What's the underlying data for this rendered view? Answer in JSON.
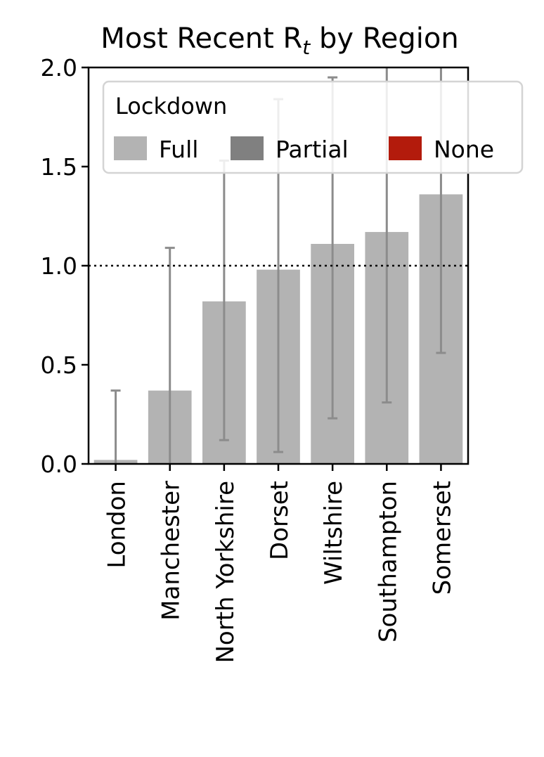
{
  "chart_data": {
    "type": "bar",
    "title": "Most Recent R",
    "title_subscript": "t",
    "title_suffix": " by Region",
    "xlabel": "",
    "ylabel": "",
    "ylim": [
      0,
      2.0
    ],
    "yticks": [
      "0.0",
      "0.5",
      "1.0",
      "1.5",
      "2.0"
    ],
    "categories": [
      "London",
      "Manchester",
      "North Yorkshire",
      "Dorset",
      "Wiltshire",
      "Southampton",
      "Somerset"
    ],
    "values": [
      0.02,
      0.37,
      0.82,
      0.98,
      1.11,
      1.17,
      1.36
    ],
    "error_low": [
      0.0,
      0.0,
      0.12,
      0.06,
      0.23,
      0.31,
      0.56
    ],
    "error_high": [
      0.37,
      1.09,
      1.53,
      1.84,
      1.95,
      2.0,
      2.0
    ],
    "lockdown": [
      "Full",
      "Full",
      "Full",
      "Full",
      "Full",
      "Full",
      "Full"
    ],
    "reference_line": 1.0,
    "grid": false,
    "legend": {
      "title": "Lockdown",
      "placement": "top-right",
      "entries": [
        {
          "label": "Full",
          "color": "#b3b3b3"
        },
        {
          "label": "Partial",
          "color": "#808080"
        },
        {
          "label": "None",
          "color": "#b31b0c"
        }
      ]
    },
    "colors": {
      "Full": "#b3b3b3",
      "Partial": "#808080",
      "None": "#b31b0c",
      "errorbar": "#8c8c8c"
    }
  }
}
